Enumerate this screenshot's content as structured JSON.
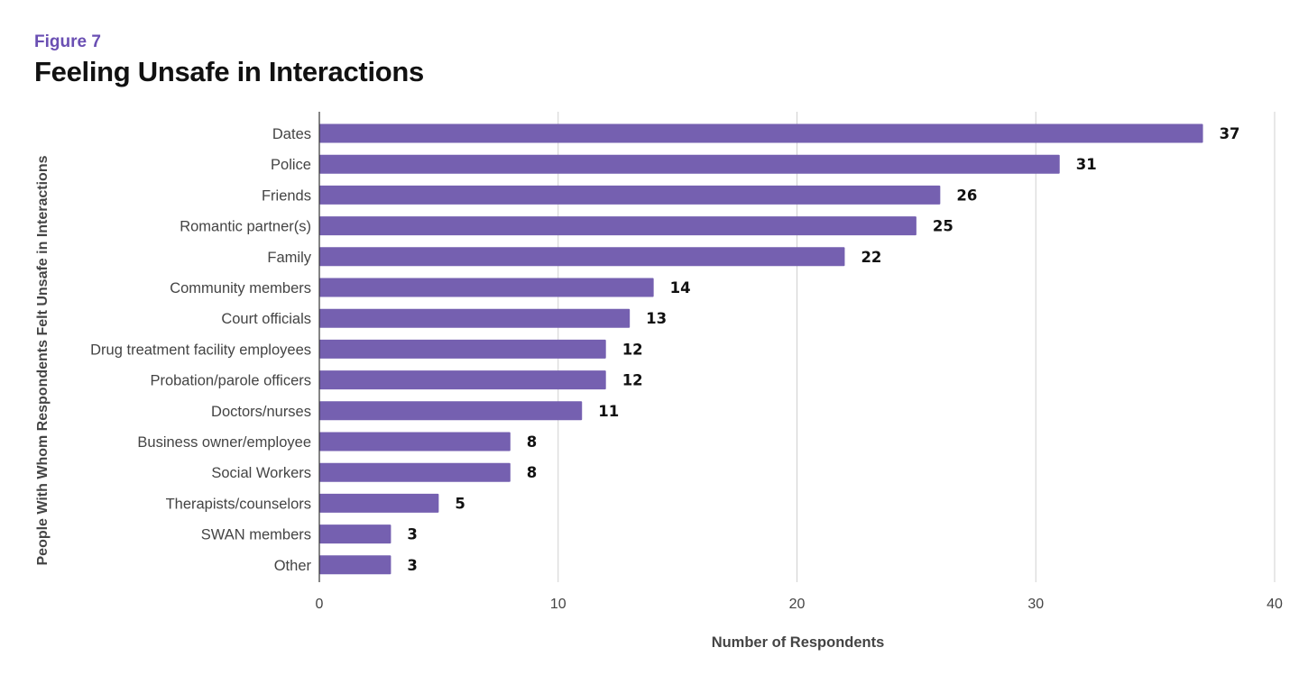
{
  "figure_label": "Figure 7",
  "title": "Feeling Unsafe in Interactions",
  "colors": {
    "bar": "#7560b0",
    "grid": "#d0d0d0",
    "axis": "#333333",
    "label": "#444444",
    "value": "#111111",
    "accent": "#6a4fb3"
  },
  "chart_data": {
    "type": "bar",
    "orientation": "horizontal",
    "title": "Feeling Unsafe in Interactions",
    "xlabel": "Number of Respondents",
    "ylabel": "People With Whom Respondents Felt Unsafe in Interactions",
    "categories": [
      "Dates",
      "Police",
      "Friends",
      "Romantic partner(s)",
      "Family",
      "Community members",
      "Court officials",
      "Drug treatment facility employees",
      "Probation/parole officers",
      "Doctors/nurses",
      "Business owner/employee",
      "Social Workers",
      "Therapists/counselors",
      "SWAN members",
      "Other"
    ],
    "values": [
      37,
      31,
      26,
      25,
      22,
      14,
      13,
      12,
      12,
      11,
      8,
      8,
      5,
      3,
      3
    ],
    "xlim": [
      0,
      40
    ],
    "xticks": [
      0,
      10,
      20,
      30,
      40
    ],
    "grid": true,
    "data_labels": true,
    "legend": "none"
  }
}
